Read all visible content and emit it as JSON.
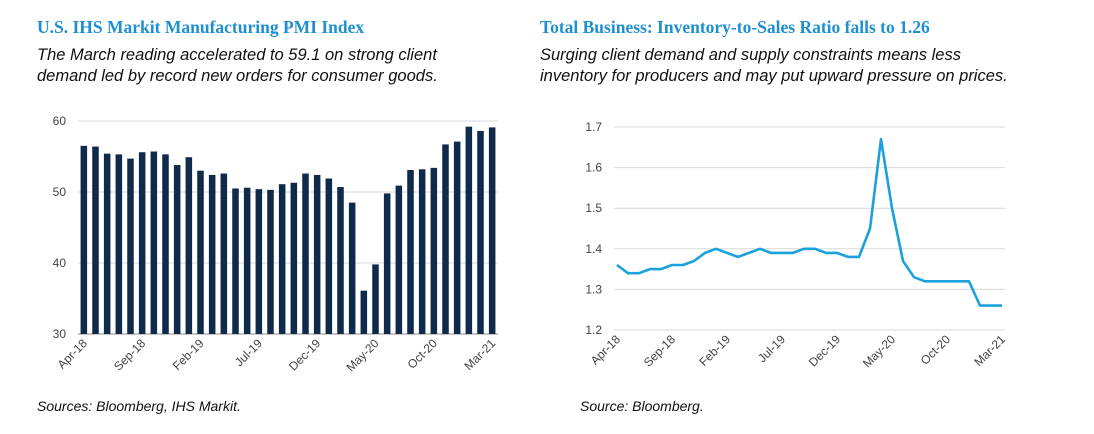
{
  "left": {
    "title": "U.S. IHS Markit Manufacturing PMI Index",
    "subtitle_lines": [
      "The March reading accelerated to 59.1 on strong client",
      "demand led by record new orders for consumer goods."
    ],
    "source": "Sources: Bloomberg, IHS Markit."
  },
  "right": {
    "title": "Total Business: Inventory-to-Sales Ratio falls to 1.26",
    "subtitle_lines": [
      "Surging client demand and supply constraints means less",
      "inventory for producers and may put upward pressure on prices."
    ],
    "source": "Source: Bloomberg."
  },
  "chart_data": [
    {
      "type": "bar",
      "title": "U.S. IHS Markit Manufacturing PMI Index",
      "color": "#0f2a4a",
      "ylim": [
        30,
        60
      ],
      "yticks": [
        30,
        40,
        50,
        60
      ],
      "grid": true,
      "xtick_labels": [
        "Apr-18",
        "Sep-18",
        "Feb-19",
        "Jul-19",
        "Dec-19",
        "May-20",
        "Oct-20",
        "Mar-21"
      ],
      "xtick_every": 5,
      "categories": [
        "Apr-18",
        "May-18",
        "Jun-18",
        "Jul-18",
        "Aug-18",
        "Sep-18",
        "Oct-18",
        "Nov-18",
        "Dec-18",
        "Jan-19",
        "Feb-19",
        "Mar-19",
        "Apr-19",
        "May-19",
        "Jun-19",
        "Jul-19",
        "Aug-19",
        "Sep-19",
        "Oct-19",
        "Nov-19",
        "Dec-19",
        "Jan-20",
        "Feb-20",
        "Mar-20",
        "Apr-20",
        "May-20",
        "Jun-20",
        "Jul-20",
        "Aug-20",
        "Sep-20",
        "Oct-20",
        "Nov-20",
        "Dec-20",
        "Jan-21",
        "Feb-21",
        "Mar-21"
      ],
      "values": [
        56.5,
        56.4,
        55.4,
        55.3,
        54.7,
        55.6,
        55.7,
        55.3,
        53.8,
        54.9,
        53.0,
        52.4,
        52.6,
        50.5,
        50.6,
        50.4,
        50.3,
        51.1,
        51.3,
        52.6,
        52.4,
        51.9,
        50.7,
        48.5,
        36.1,
        39.8,
        49.8,
        50.9,
        53.1,
        53.2,
        53.4,
        56.7,
        57.1,
        59.2,
        58.6,
        59.1
      ]
    },
    {
      "type": "line",
      "title": "Total Business: Inventory-to-Sales Ratio falls to 1.26",
      "color": "#1ba1dc",
      "ylim": [
        1.2,
        1.7
      ],
      "yticks": [
        "1.2",
        "1.3",
        "1.4",
        "1.5",
        "1.6",
        "1.7"
      ],
      "grid": true,
      "xtick_labels": [
        "Apr-18",
        "Sep-18",
        "Feb-19",
        "Jul-19",
        "Dec-19",
        "May-20",
        "Oct-20",
        "Mar-21"
      ],
      "xtick_every": 5,
      "x": [
        "Apr-18",
        "May-18",
        "Jun-18",
        "Jul-18",
        "Aug-18",
        "Sep-18",
        "Oct-18",
        "Nov-18",
        "Dec-18",
        "Jan-19",
        "Feb-19",
        "Mar-19",
        "Apr-19",
        "May-19",
        "Jun-19",
        "Jul-19",
        "Aug-19",
        "Sep-19",
        "Oct-19",
        "Nov-19",
        "Dec-19",
        "Jan-20",
        "Feb-20",
        "Mar-20",
        "Apr-20",
        "May-20",
        "Jun-20",
        "Jul-20",
        "Aug-20",
        "Sep-20",
        "Oct-20",
        "Nov-20",
        "Dec-20",
        "Jan-21",
        "Feb-21",
        "Mar-21"
      ],
      "values": [
        1.36,
        1.34,
        1.34,
        1.35,
        1.35,
        1.36,
        1.36,
        1.37,
        1.39,
        1.4,
        1.39,
        1.38,
        1.39,
        1.4,
        1.39,
        1.39,
        1.39,
        1.4,
        1.4,
        1.39,
        1.39,
        1.38,
        1.38,
        1.45,
        1.67,
        1.5,
        1.37,
        1.33,
        1.32,
        1.32,
        1.32,
        1.32,
        1.32,
        1.26,
        1.26,
        1.26
      ]
    }
  ]
}
